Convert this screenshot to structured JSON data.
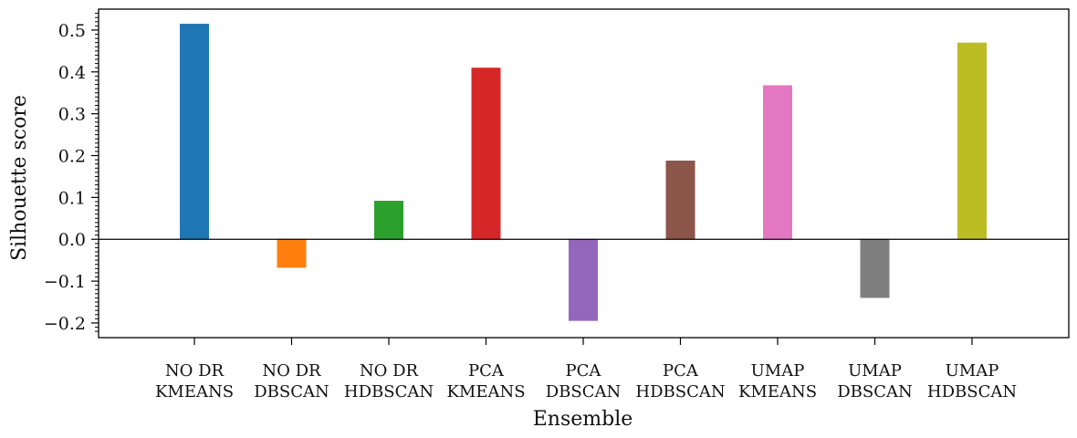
{
  "chart_data": {
    "type": "bar",
    "categories": [
      [
        "NO DR",
        "KMEANS"
      ],
      [
        "NO DR",
        "DBSCAN"
      ],
      [
        "NO DR",
        "HDBSCAN"
      ],
      [
        "PCA",
        "KMEANS"
      ],
      [
        "PCA",
        "DBSCAN"
      ],
      [
        "PCA",
        "HDBSCAN"
      ],
      [
        "UMAP",
        "KMEANS"
      ],
      [
        "UMAP",
        "DBSCAN"
      ],
      [
        "UMAP",
        "HDBSCAN"
      ]
    ],
    "values": [
      0.515,
      -0.068,
      0.092,
      0.41,
      -0.195,
      0.188,
      0.368,
      -0.14,
      0.47
    ],
    "colors": [
      "#1f77b4",
      "#ff7f0e",
      "#2ca02c",
      "#d62728",
      "#9467bd",
      "#8c564b",
      "#e377c2",
      "#7f7f7f",
      "#bcbd22"
    ],
    "xlabel": "Ensemble",
    "ylabel": "Silhouette score",
    "ylim": [
      -0.235,
      0.55
    ],
    "yticks": [
      0.5,
      0.4,
      0.3,
      0.2,
      0.1,
      0.0,
      -0.1,
      -0.2
    ],
    "ytick_labels": [
      "0.5",
      "0.4",
      "0.3",
      "0.2",
      "0.1",
      "0.0",
      "−0.1",
      "−0.2"
    ],
    "grid": false,
    "zero_line": true
  }
}
